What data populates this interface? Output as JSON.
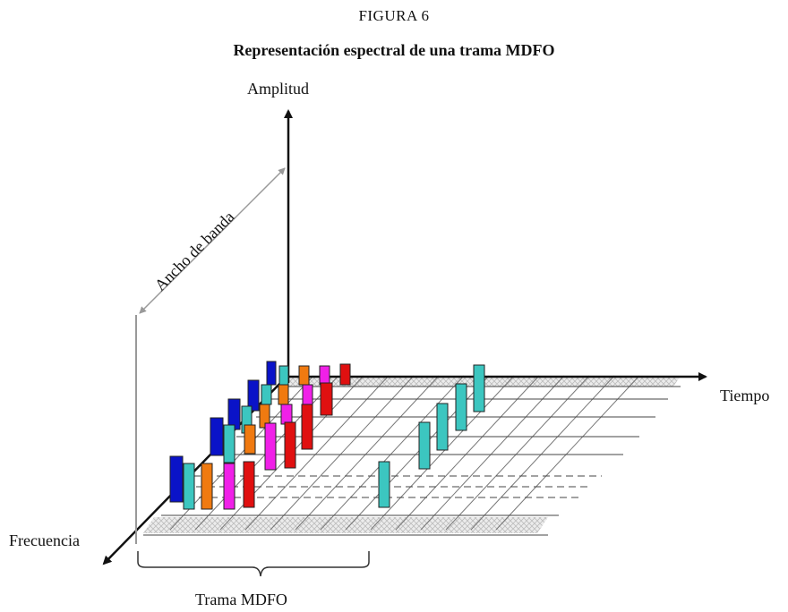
{
  "figure": {
    "label": "FIGURA 6",
    "title": "Representación espectral de una trama MDFO"
  },
  "axes": {
    "amplitude": "Amplitud",
    "time": "Tiempo",
    "frequency": "Frecuencia",
    "bandwidth": "Ancho de banda",
    "frame": "Trama MDFO"
  },
  "colors": {
    "subcarrier_1": "#0a13c8",
    "subcarrier_2": "#3cc6c0",
    "subcarrier_3": "#f07a10",
    "subcarrier_4": "#f020e8",
    "subcarrier_5": "#e01010",
    "pilot": "#3cc6c0"
  }
}
